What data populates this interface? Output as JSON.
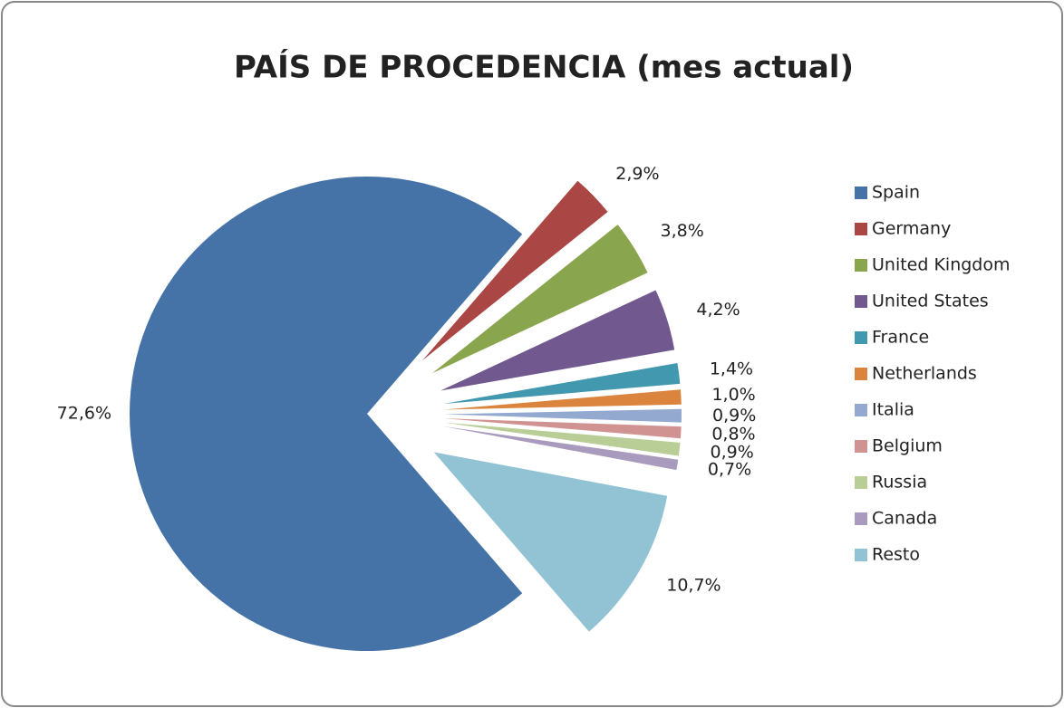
{
  "chart_data": {
    "type": "pie",
    "title": "PAÍS DE PROCEDENCIA (mes actual)",
    "categories": [
      "Spain",
      "Germany",
      "United Kingdom",
      "United States",
      "France",
      "Netherlands",
      "Italia",
      "Belgium",
      "Russia",
      "Canada",
      "Resto"
    ],
    "values": [
      72.6,
      2.9,
      3.8,
      4.2,
      1.4,
      1.0,
      0.9,
      0.8,
      0.9,
      0.7,
      10.7
    ],
    "value_labels": [
      "72,6%",
      "2,9%",
      "3,8%",
      "4,2%",
      "1,4%",
      "1,0%",
      "0,9%",
      "0,8%",
      "0,9%",
      "0,7%",
      "10,7%"
    ],
    "colors": [
      "#4572a7",
      "#aa4643",
      "#89a54e",
      "#71588f",
      "#4198af",
      "#db843d",
      "#93a9cf",
      "#d19392",
      "#b9cd96",
      "#a99bbd",
      "#92c3d5"
    ],
    "legend": "right"
  }
}
